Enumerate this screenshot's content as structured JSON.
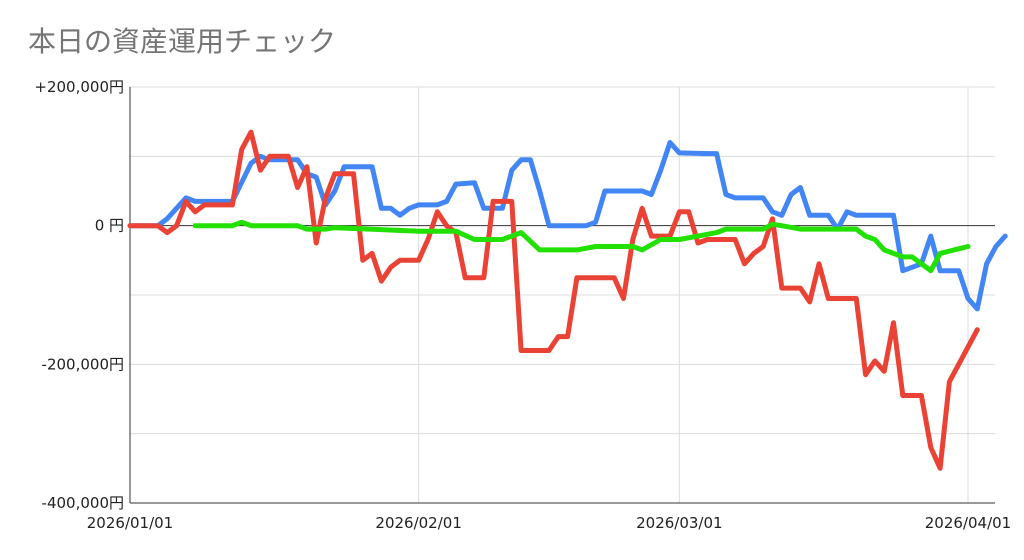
{
  "title": "本日の資産運用チェック",
  "colors": {
    "blue": "#4285f4",
    "red": "#ea4335",
    "green": "#22e000",
    "grid": "#dcdcdc",
    "axis": "#333333"
  },
  "chart_data": {
    "type": "line",
    "title": "本日の資産運用チェック",
    "xlabel": "",
    "ylabel": "",
    "x_start": "2026-01-01",
    "x_end": "2026-04-05",
    "ylim": [
      -400000,
      200000
    ],
    "y_ticks": [
      {
        "value": 200000,
        "label": "+200,000円"
      },
      {
        "value": 0,
        "label": "0 円"
      },
      {
        "value": -200000,
        "label": "-200,000円"
      },
      {
        "value": -400000,
        "label": "-400,000円"
      }
    ],
    "x_ticks": [
      {
        "date": "2026-01-01",
        "label": "2026/01/01"
      },
      {
        "date": "2026-02-01",
        "label": "2026/02/01"
      },
      {
        "date": "2026-03-01",
        "label": "2026/03/01"
      },
      {
        "date": "2026-04-01",
        "label": "2026/04/01"
      }
    ],
    "grid": true,
    "legend": "none",
    "series": [
      {
        "color": "#4285f4",
        "points": [
          [
            "2026-01-01",
            0
          ],
          [
            "2026-01-04",
            0
          ],
          [
            "2026-01-05",
            10000
          ],
          [
            "2026-01-07",
            40000
          ],
          [
            "2026-01-08",
            35000
          ],
          [
            "2026-01-12",
            35000
          ],
          [
            "2026-01-14",
            90000
          ],
          [
            "2026-01-15",
            100000
          ],
          [
            "2026-01-16",
            95000
          ],
          [
            "2026-01-19",
            95000
          ],
          [
            "2026-01-20",
            75000
          ],
          [
            "2026-01-21",
            70000
          ],
          [
            "2026-01-22",
            30000
          ],
          [
            "2026-01-23",
            50000
          ],
          [
            "2026-01-24",
            85000
          ],
          [
            "2026-01-27",
            85000
          ],
          [
            "2026-01-28",
            25000
          ],
          [
            "2026-01-29",
            25000
          ],
          [
            "2026-01-30",
            15000
          ],
          [
            "2026-01-31",
            25000
          ],
          [
            "2026-02-01",
            30000
          ],
          [
            "2026-02-03",
            30000
          ],
          [
            "2026-02-04",
            35000
          ],
          [
            "2026-02-05",
            60000
          ],
          [
            "2026-02-07",
            62000
          ],
          [
            "2026-02-08",
            25000
          ],
          [
            "2026-02-10",
            25000
          ],
          [
            "2026-02-11",
            80000
          ],
          [
            "2026-02-12",
            95000
          ],
          [
            "2026-02-13",
            95000
          ],
          [
            "2026-02-14",
            50000
          ],
          [
            "2026-02-15",
            0
          ],
          [
            "2026-02-19",
            0
          ],
          [
            "2026-02-20",
            5000
          ],
          [
            "2026-02-21",
            50000
          ],
          [
            "2026-02-25",
            50000
          ],
          [
            "2026-02-26",
            45000
          ],
          [
            "2026-02-27",
            80000
          ],
          [
            "2026-02-28",
            120000
          ],
          [
            "2026-03-01",
            105000
          ],
          [
            "2026-03-04",
            104000
          ],
          [
            "2026-03-05",
            104000
          ],
          [
            "2026-03-06",
            45000
          ],
          [
            "2026-03-07",
            40000
          ],
          [
            "2026-03-10",
            40000
          ],
          [
            "2026-03-11",
            20000
          ],
          [
            "2026-03-12",
            15000
          ],
          [
            "2026-03-13",
            45000
          ],
          [
            "2026-03-14",
            55000
          ],
          [
            "2026-03-15",
            15000
          ],
          [
            "2026-03-17",
            15000
          ],
          [
            "2026-03-18",
            -5000
          ],
          [
            "2026-03-19",
            20000
          ],
          [
            "2026-03-20",
            15000
          ],
          [
            "2026-03-24",
            15000
          ],
          [
            "2026-03-25",
            -65000
          ],
          [
            "2026-03-26",
            -60000
          ],
          [
            "2026-03-27",
            -55000
          ],
          [
            "2026-03-28",
            -15000
          ],
          [
            "2026-03-29",
            -65000
          ],
          [
            "2026-03-31",
            -65000
          ],
          [
            "2026-04-01",
            -105000
          ],
          [
            "2026-04-02",
            -120000
          ],
          [
            "2026-04-03",
            -55000
          ],
          [
            "2026-04-04",
            -30000
          ],
          [
            "2026-04-05",
            -15000
          ]
        ]
      },
      {
        "color": "#ea4335",
        "points": [
          [
            "2026-01-01",
            0
          ],
          [
            "2026-01-04",
            0
          ],
          [
            "2026-01-05",
            -10000
          ],
          [
            "2026-01-06",
            0
          ],
          [
            "2026-01-07",
            35000
          ],
          [
            "2026-01-08",
            20000
          ],
          [
            "2026-01-09",
            30000
          ],
          [
            "2026-01-12",
            30000
          ],
          [
            "2026-01-13",
            110000
          ],
          [
            "2026-01-14",
            135000
          ],
          [
            "2026-01-15",
            80000
          ],
          [
            "2026-01-16",
            100000
          ],
          [
            "2026-01-18",
            100000
          ],
          [
            "2026-01-19",
            55000
          ],
          [
            "2026-01-20",
            85000
          ],
          [
            "2026-01-21",
            -25000
          ],
          [
            "2026-01-22",
            40000
          ],
          [
            "2026-01-23",
            75000
          ],
          [
            "2026-01-25",
            75000
          ],
          [
            "2026-01-26",
            -50000
          ],
          [
            "2026-01-27",
            -40000
          ],
          [
            "2026-01-28",
            -80000
          ],
          [
            "2026-01-29",
            -60000
          ],
          [
            "2026-01-30",
            -50000
          ],
          [
            "2026-02-01",
            -50000
          ],
          [
            "2026-02-02",
            -20000
          ],
          [
            "2026-02-03",
            20000
          ],
          [
            "2026-02-04",
            0
          ],
          [
            "2026-02-05",
            -10000
          ],
          [
            "2026-02-06",
            -75000
          ],
          [
            "2026-02-08",
            -75000
          ],
          [
            "2026-02-09",
            35000
          ],
          [
            "2026-02-11",
            35000
          ],
          [
            "2026-02-12",
            -180000
          ],
          [
            "2026-02-15",
            -180000
          ],
          [
            "2026-02-16",
            -160000
          ],
          [
            "2026-02-17",
            -160000
          ],
          [
            "2026-02-18",
            -75000
          ],
          [
            "2026-02-22",
            -75000
          ],
          [
            "2026-02-23",
            -105000
          ],
          [
            "2026-02-24",
            -20000
          ],
          [
            "2026-02-25",
            25000
          ],
          [
            "2026-02-26",
            -15000
          ],
          [
            "2026-02-28",
            -15000
          ],
          [
            "2026-03-01",
            20000
          ],
          [
            "2026-03-02",
            20000
          ],
          [
            "2026-03-03",
            -25000
          ],
          [
            "2026-03-04",
            -20000
          ],
          [
            "2026-03-07",
            -20000
          ],
          [
            "2026-03-08",
            -55000
          ],
          [
            "2026-03-09",
            -40000
          ],
          [
            "2026-03-10",
            -30000
          ],
          [
            "2026-03-11",
            10000
          ],
          [
            "2026-03-12",
            -90000
          ],
          [
            "2026-03-14",
            -90000
          ],
          [
            "2026-03-15",
            -110000
          ],
          [
            "2026-03-16",
            -55000
          ],
          [
            "2026-03-17",
            -105000
          ],
          [
            "2026-03-20",
            -105000
          ],
          [
            "2026-03-21",
            -215000
          ],
          [
            "2026-03-22",
            -195000
          ],
          [
            "2026-03-23",
            -210000
          ],
          [
            "2026-03-24",
            -140000
          ],
          [
            "2026-03-25",
            -245000
          ],
          [
            "2026-03-27",
            -245000
          ],
          [
            "2026-03-28",
            -320000
          ],
          [
            "2026-03-29",
            -350000
          ],
          [
            "2026-03-30",
            -225000
          ],
          [
            "2026-04-02",
            -150000
          ]
        ]
      },
      {
        "color": "#22e000",
        "points": [
          [
            "2026-01-08",
            0
          ],
          [
            "2026-01-12",
            0
          ],
          [
            "2026-01-13",
            5000
          ],
          [
            "2026-01-14",
            0
          ],
          [
            "2026-01-19",
            0
          ],
          [
            "2026-01-20",
            -5000
          ],
          [
            "2026-01-22",
            -5000
          ],
          [
            "2026-01-23",
            -3000
          ],
          [
            "2026-02-01",
            -8000
          ],
          [
            "2026-02-05",
            -8000
          ],
          [
            "2026-02-07",
            -20000
          ],
          [
            "2026-02-10",
            -20000
          ],
          [
            "2026-02-12",
            -10000
          ],
          [
            "2026-02-14",
            -35000
          ],
          [
            "2026-02-18",
            -35000
          ],
          [
            "2026-02-20",
            -30000
          ],
          [
            "2026-02-24",
            -30000
          ],
          [
            "2026-02-25",
            -35000
          ],
          [
            "2026-02-27",
            -20000
          ],
          [
            "2026-03-01",
            -20000
          ],
          [
            "2026-03-03",
            -15000
          ],
          [
            "2026-03-05",
            -10000
          ],
          [
            "2026-03-06",
            -5000
          ],
          [
            "2026-03-10",
            -5000
          ],
          [
            "2026-03-11",
            2000
          ],
          [
            "2026-03-12",
            0
          ],
          [
            "2026-03-14",
            -5000
          ],
          [
            "2026-03-20",
            -5000
          ],
          [
            "2026-03-21",
            -15000
          ],
          [
            "2026-03-22",
            -20000
          ],
          [
            "2026-03-23",
            -35000
          ],
          [
            "2026-03-25",
            -45000
          ],
          [
            "2026-03-26",
            -45000
          ],
          [
            "2026-03-27",
            -55000
          ],
          [
            "2026-03-28",
            -65000
          ],
          [
            "2026-03-29",
            -40000
          ],
          [
            "2026-04-01",
            -30000
          ]
        ]
      }
    ]
  }
}
